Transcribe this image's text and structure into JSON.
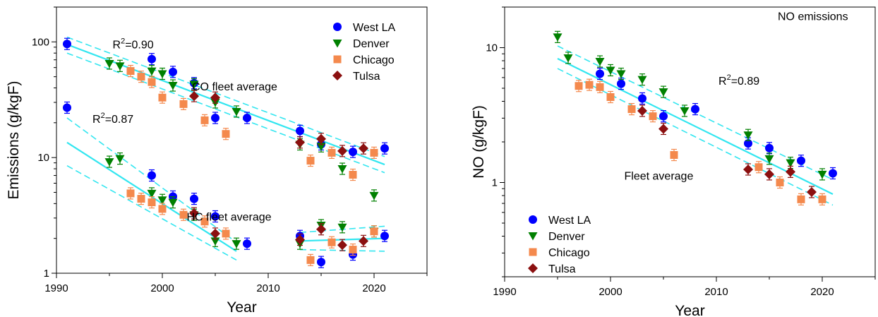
{
  "chart_data": [
    {
      "type": "scatter",
      "panel": "left",
      "title": "",
      "xlabel": "Year",
      "ylabel": "Emissions (g/kgF)",
      "xlim": [
        1990,
        2025
      ],
      "ylim": [
        1,
        200
      ],
      "yscale": "log",
      "x_ticks": [
        1990,
        2000,
        2010,
        2020
      ],
      "y_ticks": [
        1,
        10,
        100
      ],
      "grid": false,
      "legend_placement": "top-right",
      "annotations": [
        {
          "text": "R",
          "sup": "2",
          "rest": "=0.90",
          "x": 1995.3,
          "y": 88
        },
        {
          "text": "CO fleet average",
          "x": 2002.8,
          "y": 38
        },
        {
          "text": "R",
          "sup": "2",
          "rest": "=0.87",
          "x": 1993.4,
          "y": 20
        },
        {
          "text": "HC fleet average",
          "x": 2002.3,
          "y": 2.85
        }
      ],
      "series": [
        {
          "name": "West LA",
          "marker": "circle",
          "color": "#0000ff",
          "x": [
            1991,
            1999,
            2001,
            2003,
            2005,
            2008,
            2013,
            2015,
            2018,
            2021,
            1991,
            1999,
            2001,
            2003,
            2005,
            2008,
            2013,
            2015,
            2018,
            2021
          ],
          "y": [
            96,
            71,
            55,
            44,
            22,
            22,
            17,
            13,
            11.2,
            12,
            27,
            7.0,
            4.6,
            4.4,
            3.1,
            1.8,
            2.1,
            1.25,
            1.45,
            2.1
          ]
        },
        {
          "name": "Denver",
          "marker": "triangle-down",
          "color": "#008000",
          "x": [
            1995,
            1996,
            1999,
            2000,
            2001,
            2003,
            2005,
            2007,
            2013,
            2015,
            2017,
            2020,
            1995,
            1996,
            1999,
            2000,
            2001,
            2003,
            2005,
            2007,
            2013,
            2015,
            2017,
            2020
          ],
          "y": [
            65,
            62,
            56,
            53,
            42,
            43,
            30,
            25,
            13,
            12.5,
            8,
            4.7,
            9.2,
            9.8,
            4.9,
            4.3,
            4.1,
            3.2,
            1.9,
            1.8,
            1.8,
            2.6,
            2.5,
            2.3
          ]
        },
        {
          "name": "Chicago",
          "marker": "square",
          "color": "#f4894d",
          "x": [
            1997,
            1998,
            1999,
            2000,
            2002,
            2004,
            2006,
            2014,
            2016,
            2018,
            2020,
            1997,
            1998,
            1999,
            2000,
            2002,
            2004,
            2006,
            2014,
            2016,
            2018,
            2020
          ],
          "y": [
            56,
            50,
            45,
            33,
            29,
            21,
            16,
            9.4,
            11,
            7.1,
            11,
            4.9,
            4.4,
            4.1,
            3.6,
            3.2,
            2.8,
            2.2,
            1.3,
            1.85,
            1.6,
            2.3
          ]
        },
        {
          "name": "Tulsa",
          "marker": "diamond",
          "color": "#8b1010",
          "x": [
            2003,
            2005,
            2013,
            2015,
            2017,
            2019,
            2003,
            2005,
            2013,
            2015,
            2017,
            2019
          ],
          "y": [
            34,
            33,
            13.5,
            14.5,
            11.4,
            12,
            3.3,
            2.2,
            1.95,
            2.4,
            1.75,
            1.9
          ]
        }
      ],
      "fit_lines": [
        {
          "x": [
            1991,
            2021
          ],
          "y": [
            95,
            8.7
          ],
          "upper": [
            110,
            10.2
          ],
          "lower": [
            80,
            7.4
          ]
        },
        {
          "x": [
            1991,
            2007
          ],
          "y": [
            13.5,
            1.55
          ],
          "upper": [
            22,
            1.85
          ],
          "lower": [
            8.5,
            1.3
          ]
        },
        {
          "x": [
            2013,
            2021
          ],
          "y": [
            1.9,
            2.0
          ],
          "upper": [
            2.25,
            2.55
          ],
          "lower": [
            1.6,
            1.55
          ]
        }
      ]
    },
    {
      "type": "scatter",
      "panel": "right",
      "title": "",
      "xlabel": "Year",
      "ylabel": "NO (g/kgF)",
      "xlim": [
        1990,
        2025
      ],
      "ylim": [
        0.2,
        20
      ],
      "yscale": "log",
      "x_ticks": [
        1990,
        2000,
        2010,
        2020
      ],
      "y_ticks": [
        1,
        10
      ],
      "grid": false,
      "legend_placement": "bottom-left",
      "annotations": [
        {
          "text": "NO emissions",
          "x": 2015.8,
          "y": 16
        },
        {
          "text": "R",
          "sup": "2",
          "rest": "=0.89",
          "x": 2010.2,
          "y": 5.3
        },
        {
          "text": "Fleet average",
          "x": 2001.3,
          "y": 1.05
        }
      ],
      "series": [
        {
          "name": "West LA",
          "marker": "circle",
          "color": "#0000ff",
          "x": [
            1999,
            2001,
            2003,
            2005,
            2008,
            2013,
            2015,
            2018,
            2021
          ],
          "y": [
            6.4,
            5.4,
            4.2,
            3.1,
            3.5,
            1.95,
            1.8,
            1.45,
            1.17
          ]
        },
        {
          "name": "Denver",
          "marker": "triangle-down",
          "color": "#008000",
          "x": [
            1995,
            1996,
            1999,
            2000,
            2001,
            2003,
            2005,
            2007,
            2013,
            2015,
            2017,
            2020
          ],
          "y": [
            12,
            8.4,
            7.9,
            6.8,
            6.4,
            5.8,
            4.7,
            3.4,
            2.25,
            1.5,
            1.4,
            1.15
          ]
        },
        {
          "name": "Chicago",
          "marker": "square",
          "color": "#f4894d",
          "x": [
            1997,
            1998,
            1999,
            2000,
            2002,
            2004,
            2006,
            2014,
            2016,
            2018,
            2020
          ],
          "y": [
            5.2,
            5.3,
            5.1,
            4.3,
            3.5,
            3.1,
            1.6,
            1.3,
            1.0,
            0.75,
            0.75
          ]
        },
        {
          "name": "Tulsa",
          "marker": "diamond",
          "color": "#8b1010",
          "x": [
            2003,
            2005,
            2013,
            2015,
            2017,
            2019
          ],
          "y": [
            3.4,
            2.5,
            1.25,
            1.15,
            1.2,
            0.85
          ]
        }
      ],
      "fit_lines": [
        {
          "x": [
            1995,
            2021
          ],
          "y": [
            8.3,
            0.82
          ],
          "upper": [
            10.3,
            1.05
          ],
          "lower": [
            7.0,
            0.68
          ]
        }
      ]
    }
  ]
}
